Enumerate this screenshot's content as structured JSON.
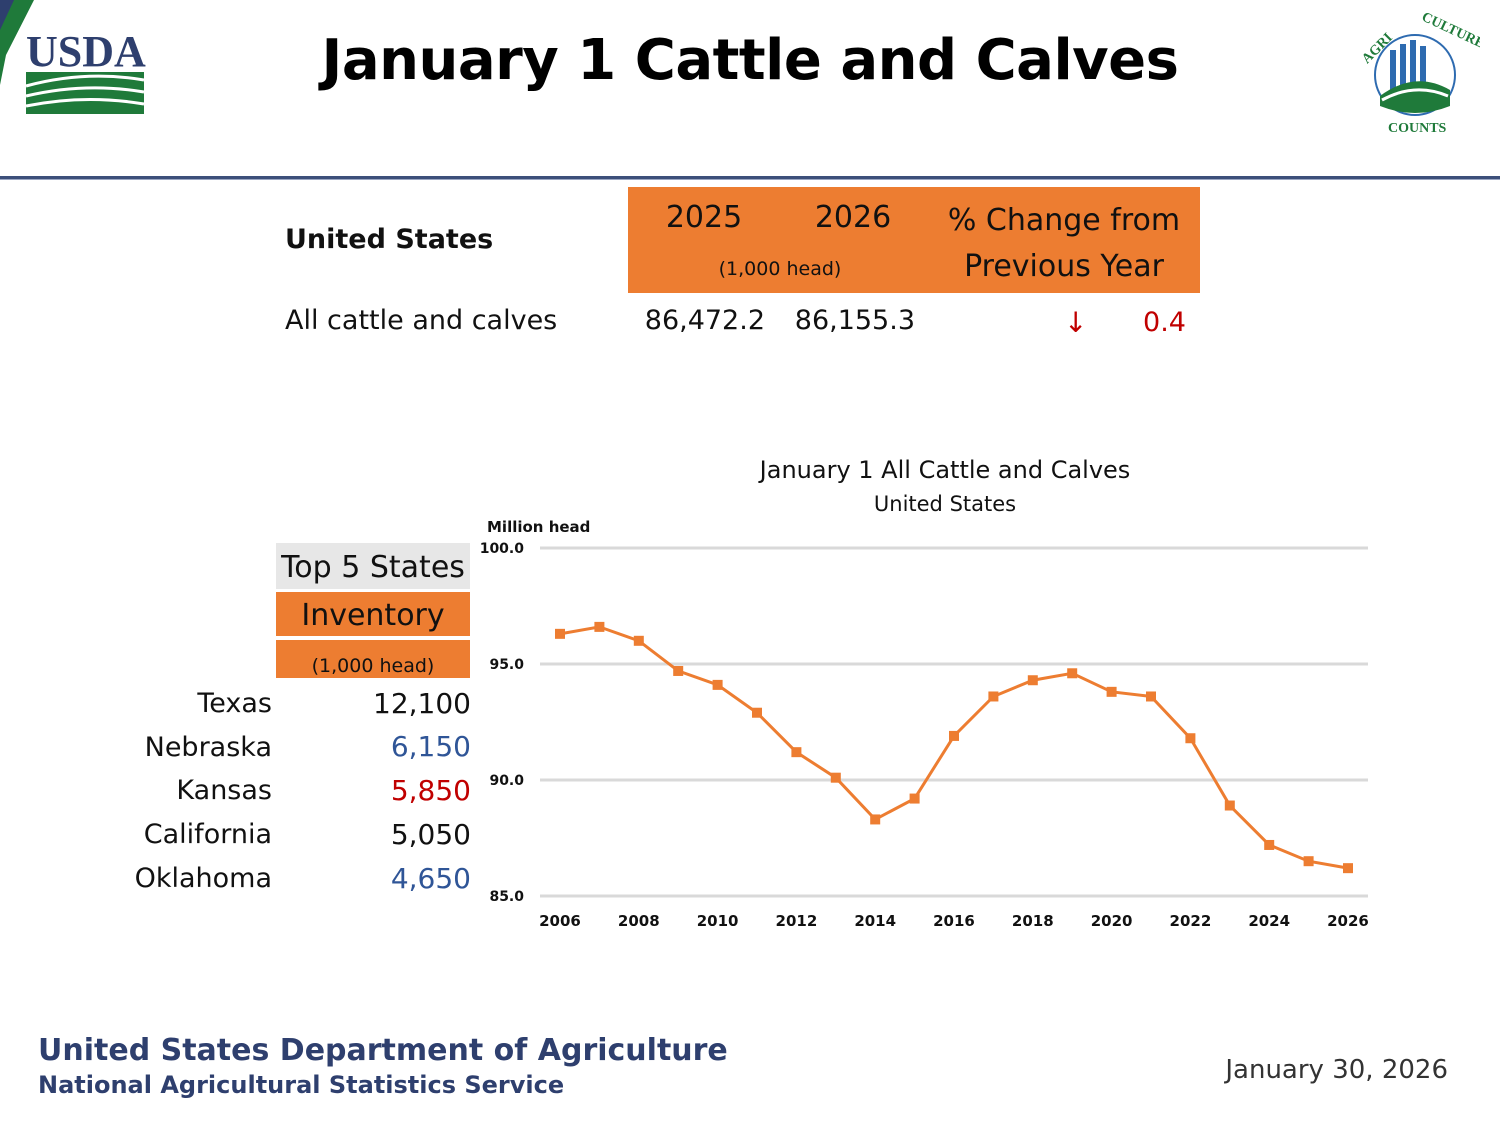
{
  "header": {
    "title": "January 1 Cattle and Calves",
    "usda_logo_text": "USDA",
    "ag_counts_logo_text": "AGRICULTURE COUNTS"
  },
  "summary": {
    "region_label": "United States",
    "year_2025": "2025",
    "year_2026": "2026",
    "units": "(1,000 head)",
    "change_header": "% Change from Previous Year",
    "row_label": "All cattle and calves",
    "value_2025": "86,472.2",
    "value_2026": "86,155.3",
    "change_arrow": "↓",
    "change_value": "0.4"
  },
  "top5": {
    "title": "Top 5 States",
    "inventory_label": "Inventory",
    "units": "(1,000 head)",
    "states": [
      {
        "name": "Texas",
        "value": "12,100",
        "color": "#111111"
      },
      {
        "name": "Nebraska",
        "value": "6,150",
        "color": "#2f5597"
      },
      {
        "name": "Kansas",
        "value": "5,850",
        "color": "#c00000"
      },
      {
        "name": "California",
        "value": "5,050",
        "color": "#111111"
      },
      {
        "name": "Oklahoma",
        "value": "4,650",
        "color": "#2f5597"
      }
    ]
  },
  "chart_data": {
    "type": "line",
    "title": "January 1 All Cattle and Calves",
    "subtitle": "United States",
    "ylabel": "Million head",
    "xlabel": "",
    "ylim": [
      85.0,
      100.0
    ],
    "y_ticks": [
      "100.0",
      "95.0",
      "90.0",
      "85.0"
    ],
    "x_ticks": [
      "2006",
      "2008",
      "2010",
      "2012",
      "2014",
      "2016",
      "2018",
      "2020",
      "2022",
      "2024",
      "2026"
    ],
    "grid": true,
    "series": [
      {
        "name": "All cattle and calves",
        "color": "#ed7d31",
        "x": [
          2006,
          2007,
          2008,
          2009,
          2010,
          2011,
          2012,
          2013,
          2014,
          2015,
          2016,
          2017,
          2018,
          2019,
          2020,
          2021,
          2022,
          2023,
          2024,
          2025,
          2026
        ],
        "values": [
          96.3,
          96.6,
          96.0,
          94.7,
          94.1,
          92.9,
          91.2,
          90.1,
          88.3,
          89.2,
          91.9,
          93.6,
          94.3,
          94.6,
          93.8,
          93.6,
          91.8,
          88.9,
          87.2,
          86.5,
          86.2
        ]
      }
    ]
  },
  "footer": {
    "department": "United States Department of Agriculture",
    "agency": "National Agricultural Statistics Service",
    "date": "January 30, 2026"
  }
}
